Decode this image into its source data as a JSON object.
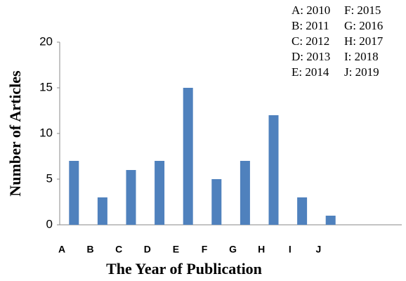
{
  "chart_data": {
    "type": "bar",
    "x_label": "The Year of  Publication",
    "y_label": "Number of Articles",
    "categories": [
      "A",
      "B",
      "C",
      "D",
      "E",
      "F",
      "G",
      "H",
      "I",
      "J"
    ],
    "values": [
      7,
      3,
      6,
      7,
      15,
      5,
      7,
      12,
      3,
      1
    ],
    "color": "#4f81bd",
    "ylim": [
      0,
      20
    ],
    "yticks": [
      0,
      5,
      10,
      15,
      20
    ],
    "grid": false,
    "annotations": [
      "A: 2010",
      "B: 2011",
      "C: 2012",
      "D: 2013",
      "E: 2014",
      "F: 2015",
      "G: 2016",
      "H: 2017",
      "I: 2018",
      "J: 2019"
    ]
  }
}
